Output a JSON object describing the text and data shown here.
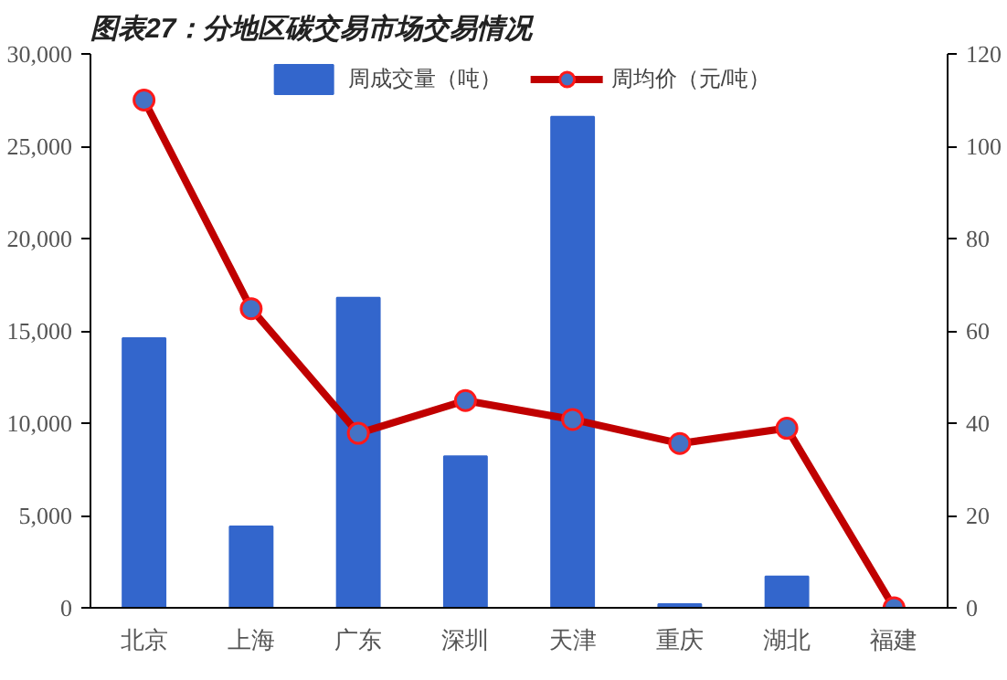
{
  "chart_data": {
    "type": "bar",
    "title": "图表27：分地区碳交易市场交易情况",
    "categories": [
      "北京",
      "上海",
      "广东",
      "深圳",
      "天津",
      "重庆",
      "湖北",
      "福建"
    ],
    "series": [
      {
        "name": "周成交量（吨）",
        "color": "#3366cc",
        "values": [
          14600,
          4400,
          16800,
          8200,
          26600,
          200,
          1700,
          0
        ]
      },
      {
        "name": "周均价（元/吨）",
        "type": "line",
        "axis": "y2",
        "color": "#c00000",
        "marker": "circle",
        "values": [
          110,
          64.8,
          37.8,
          44.9,
          40.8,
          35.6,
          38.9,
          0
        ]
      }
    ],
    "ylim": [
      0,
      30000
    ],
    "yticks": [
      {
        "value": 0,
        "label": "0"
      },
      {
        "value": 5000,
        "label": "5,000"
      },
      {
        "value": 10000,
        "label": "10,000"
      },
      {
        "value": 15000,
        "label": "15,000"
      },
      {
        "value": 20000,
        "label": "20,000"
      },
      {
        "value": 25000,
        "label": "25,000"
      },
      {
        "value": 30000,
        "label": "30,000"
      }
    ],
    "y2lim": [
      0,
      120
    ],
    "y2ticks": [
      0,
      20,
      40,
      60,
      80,
      100,
      120
    ],
    "legend": "top",
    "grid": false
  }
}
